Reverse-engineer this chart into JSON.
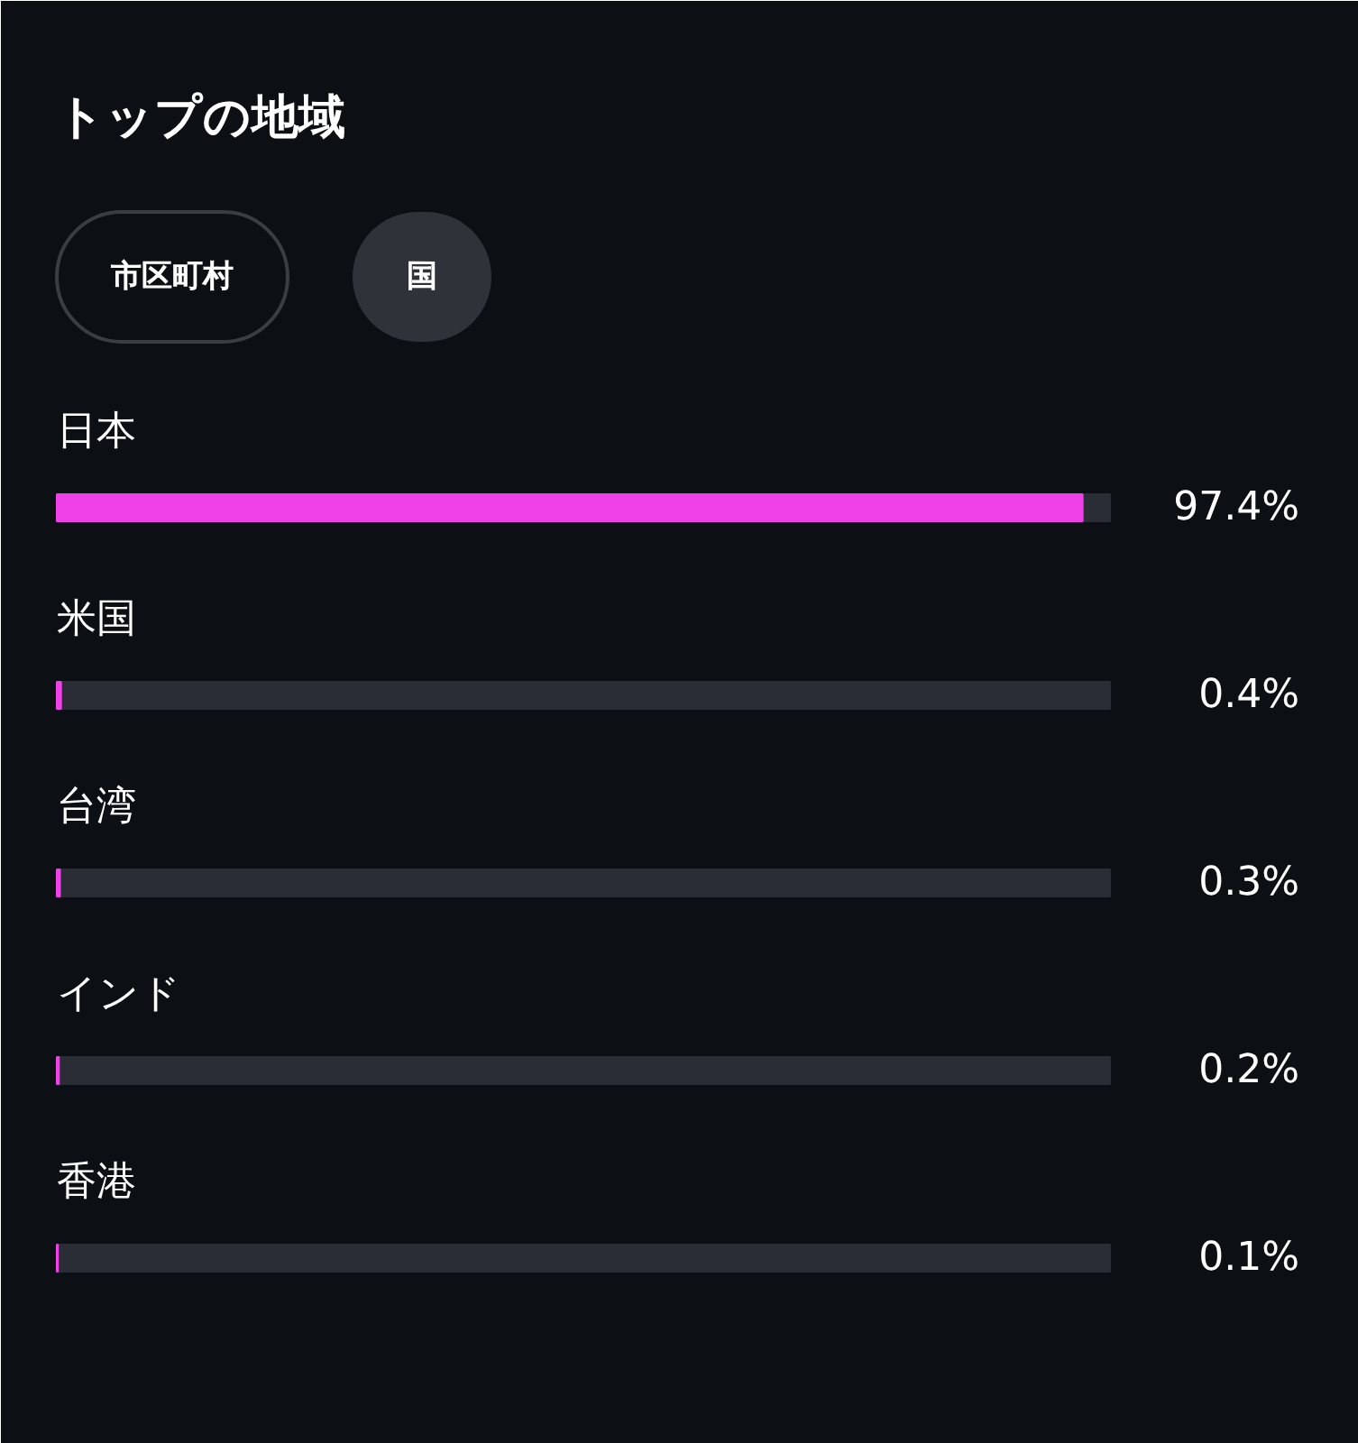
{
  "chart_data": {
    "type": "bar",
    "orientation": "horizontal",
    "title": "トップの地域",
    "annotations": [
      "市区町村",
      "国"
    ],
    "categories": [
      "日本",
      "米国",
      "台湾",
      "インド",
      "香港"
    ],
    "values": [
      97.4,
      0.4,
      0.3,
      0.2,
      0.1
    ],
    "color": "#f040e8",
    "xlim": [
      0,
      100
    ],
    "data_labels": true,
    "value_labels": [
      "97.4%",
      "0.4%",
      "0.3%",
      "0.2%",
      "0.1%"
    ],
    "grid": false
  }
}
